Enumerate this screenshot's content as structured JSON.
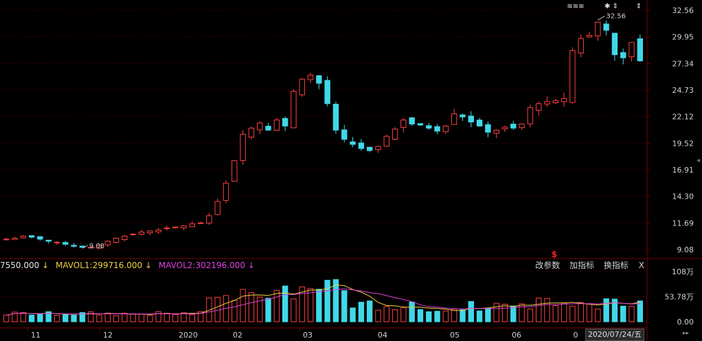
{
  "price_axis": [
    "32.56",
    "29.95",
    "27.34",
    "24.73",
    "22.12",
    "19.52",
    "16.91",
    "14.30",
    "11.69",
    "9.08"
  ],
  "volume_axis": [
    "108万",
    "53.78万",
    "0.00"
  ],
  "time_axis": [
    "11",
    "12",
    "2020",
    "02",
    "03",
    "04",
    "05",
    "06",
    "0"
  ],
  "annotations": {
    "high_label": "32.56",
    "low_label": "9.08",
    "markers_top": [
      "≋≋≋",
      "✱ ⇕",
      "⇕"
    ],
    "dollar_marker": "$"
  },
  "indicator_bar": {
    "vol_text": "7550.000",
    "mavol1_text": "MAVOL1:299716.000",
    "mavol2_text": "MAVOL2:302196.000",
    "arrow": "↓",
    "buttons": [
      "改参数",
      "加指标",
      "换指标",
      "X"
    ]
  },
  "current_date": "2020/07/24/五",
  "scroll_arrows": "▸▸",
  "side_arrow": "◂",
  "colors": {
    "up": "#ff4040",
    "down": "#40d8e8",
    "grid": "#5a0000",
    "mavol1": "#f0d040",
    "mavol2": "#e040e0"
  },
  "chart_data": {
    "type": "candlestick",
    "y_range": [
      9.08,
      32.56
    ],
    "volume_range_wan": [
      0,
      108
    ],
    "series": [
      {
        "name": "price_close_approx",
        "values": [
          10.1,
          10.2,
          10.4,
          10.3,
          10.1,
          9.9,
          9.8,
          9.6,
          9.4,
          9.3,
          9.3,
          9.5,
          9.9,
          10.2,
          10.4,
          10.6,
          10.8,
          10.9,
          11.0,
          11.2,
          11.3,
          11.4,
          11.6,
          11.7,
          12.4,
          13.8,
          15.6,
          17.8,
          20.4,
          21.0,
          21.5,
          20.8,
          21.8,
          21.2,
          24.6,
          25.8,
          26.2,
          25.4,
          23.4,
          20.8,
          19.9,
          19.4,
          19.0,
          18.8,
          19.2,
          20.2,
          20.9,
          21.8,
          21.4,
          21.3,
          21.0,
          20.7,
          21.2,
          22.4,
          22.1,
          21.6,
          21.2,
          20.6,
          20.8,
          21.1,
          21.0,
          21.4,
          23.0,
          23.4,
          23.6,
          23.7,
          23.9,
          28.6,
          29.8,
          30.1,
          31.4,
          30.6,
          28.2,
          27.9,
          29.4,
          27.6
        ]
      }
    ]
  }
}
